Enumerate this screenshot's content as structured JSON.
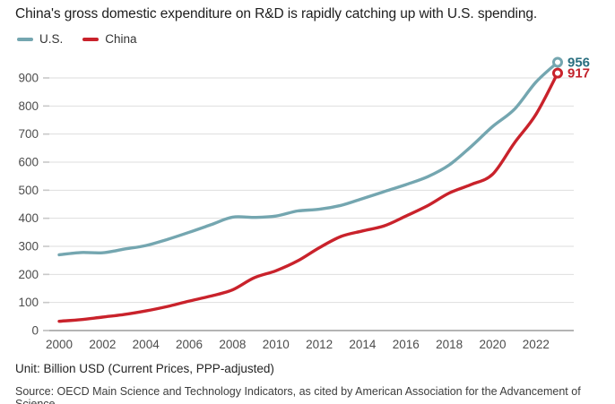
{
  "title": "China's gross domestic expenditure on R&D is rapidly catching up with U.S. spending.",
  "legend": [
    {
      "id": "us",
      "label": "U.S.",
      "color": "#74a6b0"
    },
    {
      "id": "china",
      "label": "China",
      "color": "#c9222b"
    }
  ],
  "footer": {
    "unit": "Unit: Billion USD (Current Prices, PPP-adjusted)",
    "source": "Source: OECD Main Science and Technology Indicators, as cited by American Association for the Advancement of Science."
  },
  "chart_data": {
    "type": "line",
    "x": [
      2000,
      2001,
      2002,
      2003,
      2004,
      2005,
      2006,
      2007,
      2008,
      2009,
      2010,
      2011,
      2012,
      2013,
      2014,
      2015,
      2016,
      2017,
      2018,
      2019,
      2020,
      2021,
      2022,
      2023
    ],
    "series": [
      {
        "name": "U.S.",
        "id": "us",
        "color": "#74a6b0",
        "label_color": "#2a6f80",
        "end_label": "956",
        "values": [
          270,
          278,
          277,
          290,
          303,
          325,
          350,
          377,
          404,
          403,
          408,
          426,
          432,
          446,
          470,
          495,
          520,
          548,
          590,
          655,
          727,
          788,
          885,
          956
        ]
      },
      {
        "name": "China",
        "id": "china",
        "color": "#c9222b",
        "label_color": "#c2222b",
        "end_label": "917",
        "values": [
          33,
          39,
          48,
          57,
          70,
          86,
          105,
          123,
          145,
          188,
          213,
          248,
          295,
          335,
          355,
          373,
          408,
          445,
          490,
          520,
          557,
          668,
          770,
          917
        ]
      }
    ],
    "xticks": [
      2000,
      2002,
      2004,
      2006,
      2008,
      2010,
      2012,
      2014,
      2016,
      2018,
      2020,
      2022
    ],
    "ylim": [
      0,
      900
    ],
    "ytick_step": 100,
    "grid": "horizontal",
    "legend_position": "top-left",
    "title": "China's gross domestic expenditure on R&D is rapidly catching up with U.S. spending.",
    "xlabel": "",
    "ylabel": "Billion USD (Current Prices, PPP-adjusted)"
  },
  "style": {
    "gridline_color": "#dedede",
    "baseline_color": "#9c9c9c",
    "tick_stub_color": "#c8c8c8",
    "axis_text_color": "#4d4d4d"
  }
}
